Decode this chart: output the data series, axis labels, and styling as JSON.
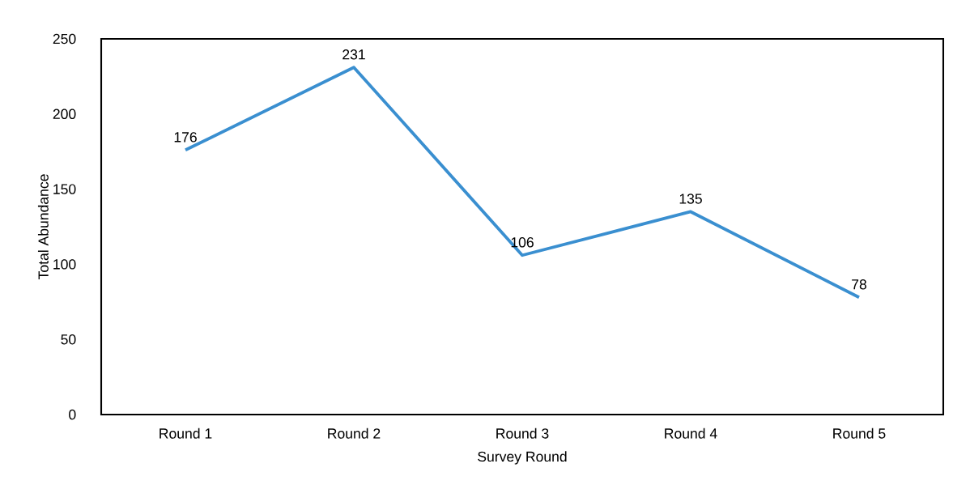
{
  "chart_data": {
    "type": "line",
    "xlabel": "Survey Round",
    "ylabel": "Total Abundance",
    "categories": [
      "Round 1",
      "Round 2",
      "Round 3",
      "Round 4",
      "Round 5"
    ],
    "values": [
      176,
      231,
      106,
      135,
      78
    ],
    "color": "#3a8fd0",
    "ylim": [
      0,
      250
    ],
    "yticks": [
      0,
      50,
      100,
      150,
      200,
      250
    ],
    "data_labels": true
  }
}
